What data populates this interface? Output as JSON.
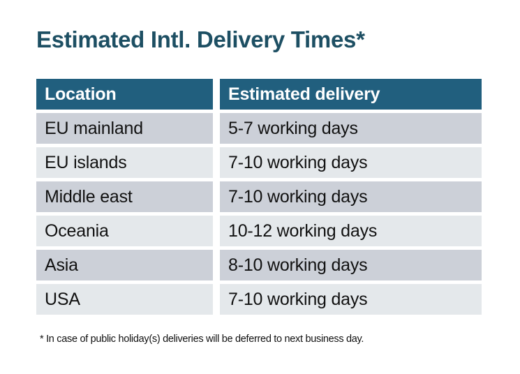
{
  "title": "Estimated Intl. Delivery Times*",
  "colors": {
    "title": "#1d4f63",
    "header_bg": "#215f7e",
    "header_text": "#ffffff",
    "row_dark": "#ccd0d8",
    "row_light": "#e4e8eb",
    "body_text": "#111111"
  },
  "table": {
    "columns": [
      "Location",
      "Estimated delivery"
    ],
    "rows": [
      [
        "EU mainland",
        "5-7 working days"
      ],
      [
        "EU islands",
        "7-10 working days"
      ],
      [
        "Middle east",
        "7-10 working days"
      ],
      [
        "Oceania",
        "10-12 working days"
      ],
      [
        "Asia",
        "8-10 working days"
      ],
      [
        "USA",
        "7-10 working days"
      ]
    ]
  },
  "footnote": "* In case of public holiday(s) deliveries will be deferred to next business day."
}
